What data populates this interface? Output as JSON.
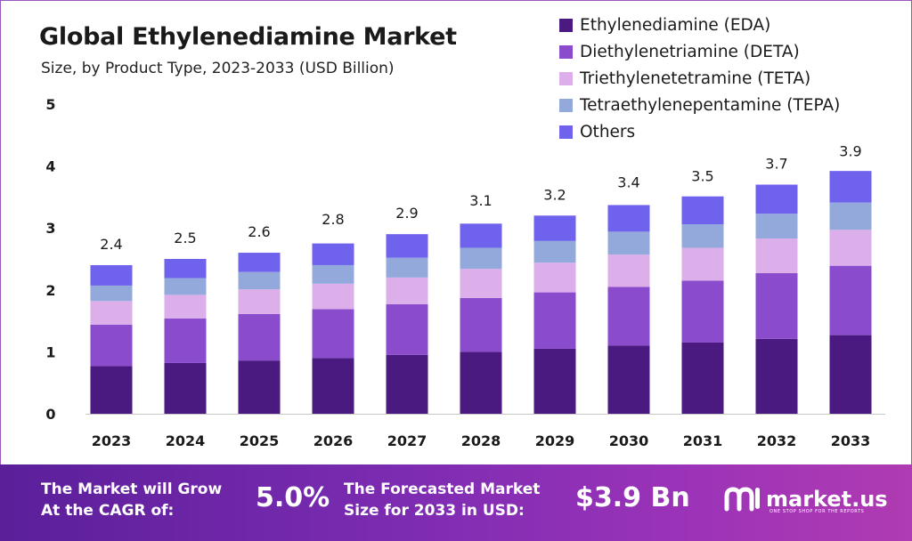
{
  "header": {
    "title": "Global Ethylenediamine Market",
    "subtitle": "Size, by Product Type, 2023-2033 (USD Billion)"
  },
  "colors": {
    "EDA": "#4a1a80",
    "DETA": "#8a4ccd",
    "TETA": "#dcaeea",
    "TEPA": "#93a9db",
    "Others": "#6f62ec"
  },
  "chart_data": {
    "type": "bar",
    "stacked": true,
    "title": "Global Ethylenediamine Market",
    "subtitle": "Size, by Product Type, 2023-2033 (USD Billion)",
    "categories": [
      "2023",
      "2024",
      "2025",
      "2026",
      "2027",
      "2028",
      "2029",
      "2030",
      "2031",
      "2032",
      "2033"
    ],
    "totals": [
      2.4,
      2.5,
      2.6,
      2.8,
      2.9,
      3.1,
      3.2,
      3.4,
      3.5,
      3.7,
      3.9
    ],
    "total_labels": [
      "2.4",
      "2.5",
      "2.6",
      "2.8",
      "2.9",
      "3.1",
      "3.2",
      "3.4",
      "3.5",
      "3.7",
      "3.9"
    ],
    "series": [
      {
        "name": "Ethylenediamine (EDA)",
        "key": "EDA",
        "values": [
          0.77,
          0.82,
          0.86,
          0.9,
          0.95,
          1.0,
          1.05,
          1.1,
          1.15,
          1.21,
          1.27
        ]
      },
      {
        "name": "Diethylenetriamine (DETA)",
        "key": "DETA",
        "values": [
          0.67,
          0.72,
          0.75,
          0.79,
          0.82,
          0.87,
          0.91,
          0.95,
          1.0,
          1.06,
          1.12
        ]
      },
      {
        "name": "Triethylenetetramine (TETA)",
        "key": "TETA",
        "values": [
          0.38,
          0.38,
          0.4,
          0.41,
          0.43,
          0.47,
          0.48,
          0.52,
          0.53,
          0.56,
          0.58
        ]
      },
      {
        "name": "Tetraethylenepentamine (TEPA)",
        "key": "TEPA",
        "values": [
          0.25,
          0.27,
          0.28,
          0.3,
          0.32,
          0.34,
          0.35,
          0.37,
          0.38,
          0.4,
          0.44
        ]
      },
      {
        "name": "Others",
        "key": "Others",
        "values": [
          0.33,
          0.31,
          0.31,
          0.35,
          0.38,
          0.39,
          0.41,
          0.43,
          0.45,
          0.47,
          0.51
        ]
      }
    ],
    "xlabel": "",
    "ylabel": "",
    "ylim": [
      0,
      5
    ],
    "yticks": [
      "0",
      "1",
      "2",
      "3",
      "4",
      "5"
    ],
    "grid": false,
    "legend_position": "top-right"
  },
  "footer": {
    "cagr_line1": "The Market will Grow",
    "cagr_line2": "At the CAGR of:",
    "cagr_value": "5.0%",
    "forecast_line1": "The Forecasted Market",
    "forecast_line2": "Size for 2033 in USD:",
    "forecast_value": "$3.9 Bn",
    "brand_name": "market.us",
    "brand_tagline": "ONE STOP SHOP FOR THE REPORTS"
  }
}
